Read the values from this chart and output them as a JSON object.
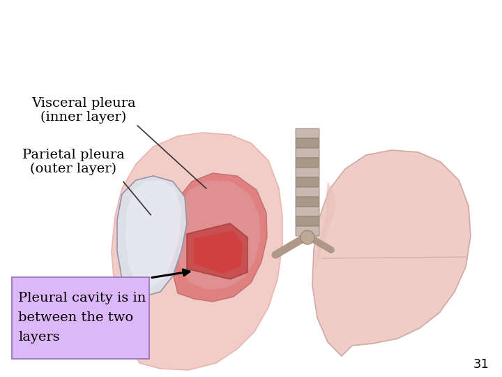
{
  "background_color": "#ffffff",
  "fig_width": 7.2,
  "fig_height": 5.4,
  "dpi": 100,
  "label_visceral_line1": "Visceral pleura",
  "label_visceral_line2": "(inner layer)",
  "label_parietal_line1": "Parietal pleura",
  "label_parietal_line2": "(outer layer)",
  "label_cavity": "Pleural cavity is in\nbetween the two\nlayers",
  "label_number": "31",
  "label_fontsize": 14,
  "number_fontsize": 13,
  "cavity_box_color": "#ddb8f8",
  "text_color": "#000000",
  "arrow_color": "#000000",
  "lung_pink_light": "#f2cdc8",
  "lung_pink_mid": "#e8b5b0",
  "lung_pink_dark": "#d49090",
  "inner_red_light": "#e08080",
  "inner_red_mid": "#c85050",
  "inner_red_dark": "#a83030",
  "pleura_white": "#dde0e8",
  "pleura_edge": "#9090a8",
  "trachea_light": "#c8b8b0",
  "trachea_dark": "#a89888"
}
